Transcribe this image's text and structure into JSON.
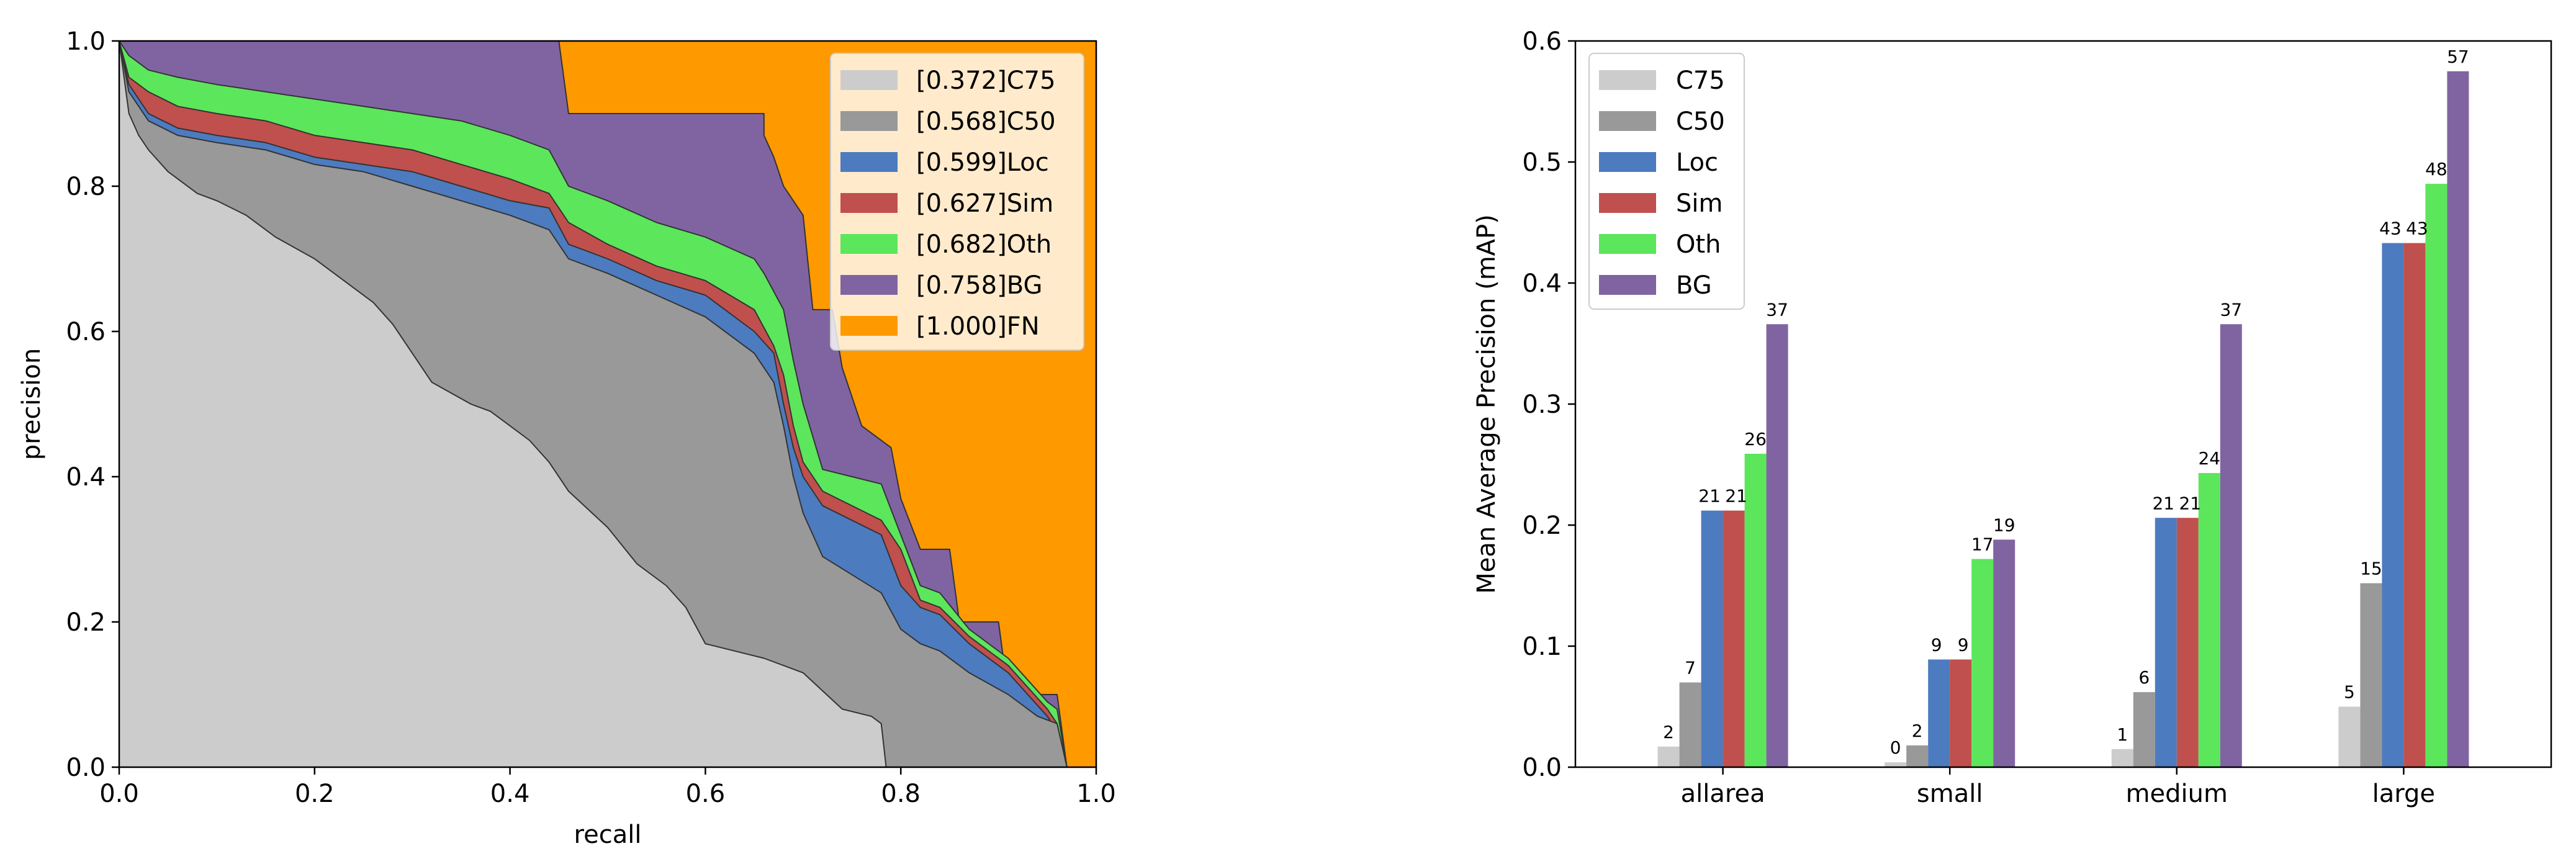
{
  "chart_data": [
    {
      "type": "area",
      "title": "",
      "xlabel": "recall",
      "ylabel": "precision",
      "xlim": [
        0,
        1
      ],
      "ylim": [
        0,
        1
      ],
      "xticks": [
        "0.0",
        "0.2",
        "0.4",
        "0.6",
        "0.8",
        "1.0"
      ],
      "yticks": [
        "0.0",
        "0.2",
        "0.4",
        "0.6",
        "0.8",
        "1.0"
      ],
      "grid": false,
      "legend_position": "top-right",
      "series": [
        {
          "name": "C75",
          "label": "[0.372]C75",
          "ap": 0.372,
          "color": "#cccccc",
          "points": [
            [
              0,
              1.0
            ],
            [
              0.01,
              0.9
            ],
            [
              0.02,
              0.87
            ],
            [
              0.03,
              0.85
            ],
            [
              0.05,
              0.82
            ],
            [
              0.08,
              0.79
            ],
            [
              0.1,
              0.78
            ],
            [
              0.13,
              0.76
            ],
            [
              0.16,
              0.73
            ],
            [
              0.2,
              0.7
            ],
            [
              0.23,
              0.67
            ],
            [
              0.26,
              0.64
            ],
            [
              0.28,
              0.61
            ],
            [
              0.3,
              0.57
            ],
            [
              0.32,
              0.53
            ],
            [
              0.36,
              0.5
            ],
            [
              0.38,
              0.49
            ],
            [
              0.4,
              0.47
            ],
            [
              0.42,
              0.45
            ],
            [
              0.44,
              0.42
            ],
            [
              0.46,
              0.38
            ],
            [
              0.5,
              0.33
            ],
            [
              0.53,
              0.28
            ],
            [
              0.56,
              0.25
            ],
            [
              0.58,
              0.22
            ],
            [
              0.6,
              0.17
            ],
            [
              0.63,
              0.16
            ],
            [
              0.66,
              0.15
            ],
            [
              0.7,
              0.13
            ],
            [
              0.74,
              0.08
            ],
            [
              0.77,
              0.07
            ],
            [
              0.78,
              0.06
            ],
            [
              0.785,
              0.0
            ]
          ]
        },
        {
          "name": "C50",
          "label": "[0.568]C50",
          "ap": 0.568,
          "color": "#999999",
          "points": [
            [
              0,
              1.0
            ],
            [
              0.01,
              0.93
            ],
            [
              0.03,
              0.89
            ],
            [
              0.06,
              0.87
            ],
            [
              0.1,
              0.86
            ],
            [
              0.15,
              0.85
            ],
            [
              0.2,
              0.83
            ],
            [
              0.25,
              0.82
            ],
            [
              0.3,
              0.8
            ],
            [
              0.35,
              0.78
            ],
            [
              0.4,
              0.76
            ],
            [
              0.44,
              0.74
            ],
            [
              0.46,
              0.7
            ],
            [
              0.5,
              0.68
            ],
            [
              0.55,
              0.65
            ],
            [
              0.6,
              0.62
            ],
            [
              0.65,
              0.57
            ],
            [
              0.67,
              0.53
            ],
            [
              0.68,
              0.47
            ],
            [
              0.69,
              0.4
            ],
            [
              0.7,
              0.35
            ],
            [
              0.72,
              0.29
            ],
            [
              0.78,
              0.24
            ],
            [
              0.8,
              0.19
            ],
            [
              0.82,
              0.17
            ],
            [
              0.84,
              0.16
            ],
            [
              0.87,
              0.13
            ],
            [
              0.91,
              0.1
            ],
            [
              0.94,
              0.07
            ],
            [
              0.96,
              0.06
            ],
            [
              0.97,
              0.0
            ]
          ]
        },
        {
          "name": "Loc",
          "label": "[0.599]Loc",
          "ap": 0.599,
          "color": "#4c7bbf",
          "points": [
            [
              0,
              1.0
            ],
            [
              0.01,
              0.94
            ],
            [
              0.03,
              0.9
            ],
            [
              0.06,
              0.88
            ],
            [
              0.1,
              0.87
            ],
            [
              0.15,
              0.86
            ],
            [
              0.2,
              0.84
            ],
            [
              0.25,
              0.83
            ],
            [
              0.3,
              0.82
            ],
            [
              0.35,
              0.8
            ],
            [
              0.4,
              0.78
            ],
            [
              0.44,
              0.77
            ],
            [
              0.46,
              0.72
            ],
            [
              0.5,
              0.7
            ],
            [
              0.55,
              0.67
            ],
            [
              0.6,
              0.65
            ],
            [
              0.65,
              0.6
            ],
            [
              0.67,
              0.57
            ],
            [
              0.68,
              0.5
            ],
            [
              0.69,
              0.44
            ],
            [
              0.7,
              0.4
            ],
            [
              0.72,
              0.36
            ],
            [
              0.78,
              0.32
            ],
            [
              0.8,
              0.25
            ],
            [
              0.82,
              0.22
            ],
            [
              0.84,
              0.21
            ],
            [
              0.87,
              0.17
            ],
            [
              0.91,
              0.13
            ],
            [
              0.95,
              0.07
            ],
            [
              0.96,
              0.05
            ],
            [
              0.97,
              0.0
            ]
          ]
        },
        {
          "name": "Sim",
          "label": "[0.627]Sim",
          "ap": 0.627,
          "color": "#c0504d",
          "points": [
            [
              0,
              1.0
            ],
            [
              0.01,
              0.95
            ],
            [
              0.03,
              0.93
            ],
            [
              0.06,
              0.91
            ],
            [
              0.1,
              0.9
            ],
            [
              0.15,
              0.89
            ],
            [
              0.2,
              0.87
            ],
            [
              0.25,
              0.86
            ],
            [
              0.3,
              0.85
            ],
            [
              0.35,
              0.83
            ],
            [
              0.4,
              0.81
            ],
            [
              0.44,
              0.79
            ],
            [
              0.46,
              0.75
            ],
            [
              0.5,
              0.72
            ],
            [
              0.55,
              0.69
            ],
            [
              0.6,
              0.67
            ],
            [
              0.65,
              0.63
            ],
            [
              0.67,
              0.58
            ],
            [
              0.68,
              0.54
            ],
            [
              0.69,
              0.47
            ],
            [
              0.7,
              0.42
            ],
            [
              0.72,
              0.38
            ],
            [
              0.78,
              0.34
            ],
            [
              0.8,
              0.3
            ],
            [
              0.82,
              0.23
            ],
            [
              0.84,
              0.22
            ],
            [
              0.87,
              0.18
            ],
            [
              0.91,
              0.14
            ],
            [
              0.95,
              0.08
            ],
            [
              0.96,
              0.06
            ],
            [
              0.97,
              0.0
            ]
          ]
        },
        {
          "name": "Oth",
          "label": "[0.682]Oth",
          "ap": 0.682,
          "color": "#5ce65c",
          "points": [
            [
              0,
              1.0
            ],
            [
              0.01,
              0.98
            ],
            [
              0.03,
              0.96
            ],
            [
              0.06,
              0.95
            ],
            [
              0.1,
              0.94
            ],
            [
              0.15,
              0.93
            ],
            [
              0.2,
              0.92
            ],
            [
              0.25,
              0.91
            ],
            [
              0.3,
              0.9
            ],
            [
              0.35,
              0.89
            ],
            [
              0.4,
              0.87
            ],
            [
              0.44,
              0.85
            ],
            [
              0.46,
              0.8
            ],
            [
              0.5,
              0.78
            ],
            [
              0.55,
              0.75
            ],
            [
              0.6,
              0.73
            ],
            [
              0.65,
              0.7
            ],
            [
              0.66,
              0.68
            ],
            [
              0.68,
              0.63
            ],
            [
              0.69,
              0.56
            ],
            [
              0.7,
              0.5
            ],
            [
              0.72,
              0.41
            ],
            [
              0.78,
              0.39
            ],
            [
              0.8,
              0.32
            ],
            [
              0.82,
              0.25
            ],
            [
              0.84,
              0.24
            ],
            [
              0.87,
              0.19
            ],
            [
              0.91,
              0.15
            ],
            [
              0.95,
              0.09
            ],
            [
              0.96,
              0.08
            ],
            [
              0.97,
              0.0
            ]
          ]
        },
        {
          "name": "BG",
          "label": "[0.758]BG",
          "ap": 0.758,
          "color": "#8064a2",
          "points": [
            [
              0,
              1.0
            ],
            [
              0.45,
              1.0
            ],
            [
              0.46,
              0.9
            ],
            [
              0.66,
              0.9
            ],
            [
              0.66,
              0.87
            ],
            [
              0.67,
              0.84
            ],
            [
              0.68,
              0.8
            ],
            [
              0.7,
              0.76
            ],
            [
              0.71,
              0.63
            ],
            [
              0.73,
              0.63
            ],
            [
              0.74,
              0.55
            ],
            [
              0.76,
              0.47
            ],
            [
              0.79,
              0.44
            ],
            [
              0.8,
              0.37
            ],
            [
              0.82,
              0.3
            ],
            [
              0.85,
              0.3
            ],
            [
              0.86,
              0.2
            ],
            [
              0.9,
              0.2
            ],
            [
              0.91,
              0.1
            ],
            [
              0.96,
              0.1
            ],
            [
              0.97,
              0.0
            ]
          ]
        },
        {
          "name": "FN",
          "label": "[1.000]FN",
          "ap": 1.0,
          "color": "#ff9900",
          "points": [
            [
              0,
              1.0
            ],
            [
              1.0,
              1.0
            ],
            [
              1.0,
              0.0
            ]
          ]
        }
      ]
    },
    {
      "type": "bar",
      "title": "",
      "xlabel": "",
      "ylabel": "Mean Average Precision (mAP)",
      "ylim": [
        0,
        0.6
      ],
      "yticks": [
        "0.0",
        "0.1",
        "0.2",
        "0.3",
        "0.4",
        "0.5",
        "0.6"
      ],
      "grid": false,
      "legend_position": "top-left",
      "categories": [
        "allarea",
        "small",
        "medium",
        "large"
      ],
      "series": [
        {
          "name": "C75",
          "color": "#cccccc",
          "values": [
            0.017,
            0.004,
            0.015,
            0.05
          ],
          "labels": [
            "2",
            "0",
            "1",
            "5"
          ]
        },
        {
          "name": "C50",
          "color": "#999999",
          "values": [
            0.07,
            0.018,
            0.062,
            0.152
          ],
          "labels": [
            "7",
            "2",
            "6",
            "15"
          ]
        },
        {
          "name": "Loc",
          "color": "#4c7bbf",
          "values": [
            0.212,
            0.089,
            0.206,
            0.433
          ],
          "labels": [
            "21",
            "9",
            "21",
            "43"
          ]
        },
        {
          "name": "Sim",
          "color": "#c0504d",
          "values": [
            0.212,
            0.089,
            0.206,
            0.433
          ],
          "labels": [
            "21",
            "9",
            "21",
            "43"
          ]
        },
        {
          "name": "Oth",
          "color": "#5ce65c",
          "values": [
            0.259,
            0.172,
            0.243,
            0.482
          ],
          "labels": [
            "26",
            "17",
            "24",
            "48"
          ]
        },
        {
          "name": "BG",
          "color": "#8064a2",
          "values": [
            0.366,
            0.188,
            0.366,
            0.575
          ],
          "labels": [
            "37",
            "19",
            "37",
            "57"
          ]
        }
      ]
    }
  ]
}
